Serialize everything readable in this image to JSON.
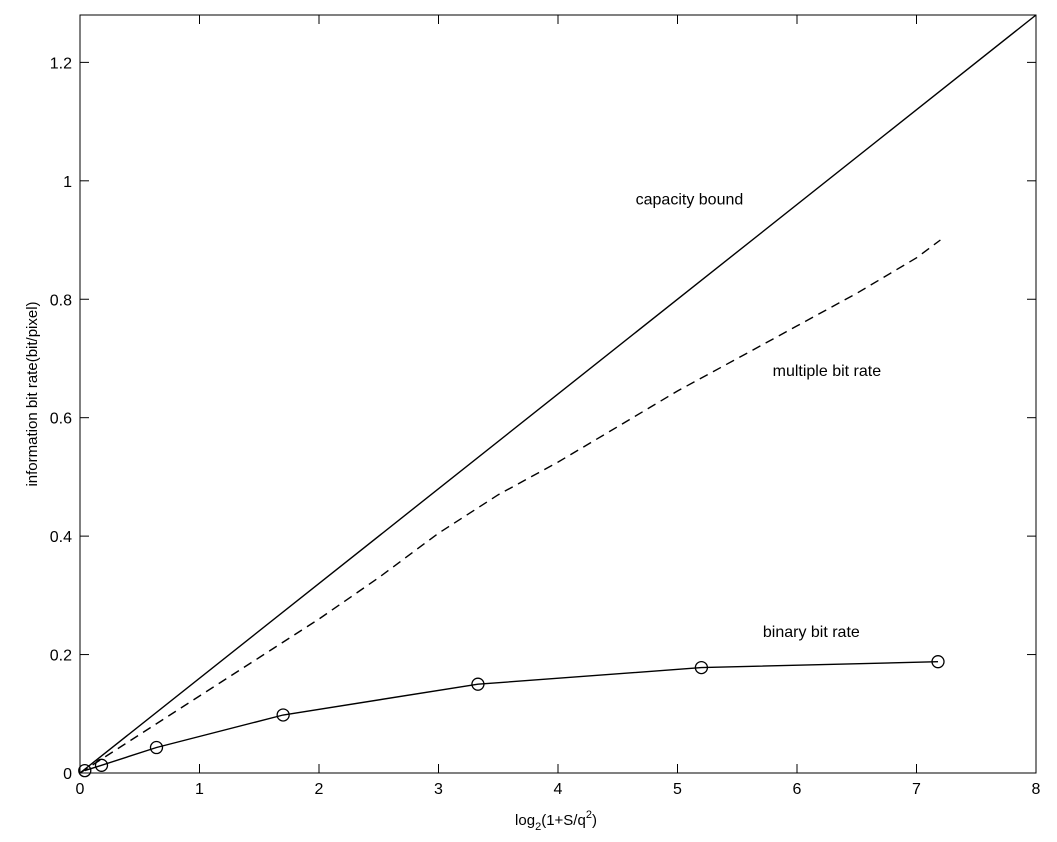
{
  "chart_data": {
    "type": "line",
    "title": "",
    "xlabel": {
      "main": "log",
      "sub": "2",
      "rest": "(1+S/q",
      "sup": "2",
      "close": ")"
    },
    "ylabel": "information bit rate(bit/pixel)",
    "xlim": [
      0,
      8
    ],
    "ylim": [
      0,
      1.28
    ],
    "xticks": [
      0,
      1,
      2,
      3,
      4,
      5,
      6,
      7,
      8
    ],
    "yticks": [
      0,
      0.2,
      0.4,
      0.6,
      0.8,
      1,
      1.2
    ],
    "xtick_labels": [
      "0",
      "1",
      "2",
      "3",
      "4",
      "5",
      "6",
      "7",
      "8"
    ],
    "ytick_labels": [
      "0",
      "0.2",
      "0.4",
      "0.6",
      "0.8",
      "1",
      "1.2"
    ],
    "grid": false,
    "series": [
      {
        "name": "capacity bound",
        "style": "solid",
        "marker": "none",
        "x": [
          0,
          8
        ],
        "y": [
          0,
          1.28
        ]
      },
      {
        "name": "multiple bit rate",
        "style": "dashed",
        "marker": "none",
        "x": [
          0,
          0.5,
          1,
          1.5,
          2,
          2.5,
          3,
          3.5,
          4,
          4.5,
          5,
          5.5,
          6,
          6.5,
          7,
          7.2
        ],
        "y": [
          0,
          0.065,
          0.13,
          0.195,
          0.26,
          0.33,
          0.405,
          0.47,
          0.525,
          0.585,
          0.645,
          0.7,
          0.755,
          0.81,
          0.87,
          0.9
        ]
      },
      {
        "name": "binary bit rate",
        "style": "solid",
        "marker": "circle",
        "x": [
          0.04,
          0.18,
          0.64,
          1.7,
          3.33,
          5.2,
          7.18
        ],
        "y": [
          0.004,
          0.013,
          0.043,
          0.098,
          0.15,
          0.178,
          0.188
        ]
      }
    ],
    "annotations": [
      {
        "text": "capacity bound",
        "x": 5.1,
        "y": 0.96
      },
      {
        "text": "multiple bit rate",
        "x": 6.25,
        "y": 0.67
      },
      {
        "text": "binary bit rate",
        "x": 6.12,
        "y": 0.23
      }
    ]
  }
}
